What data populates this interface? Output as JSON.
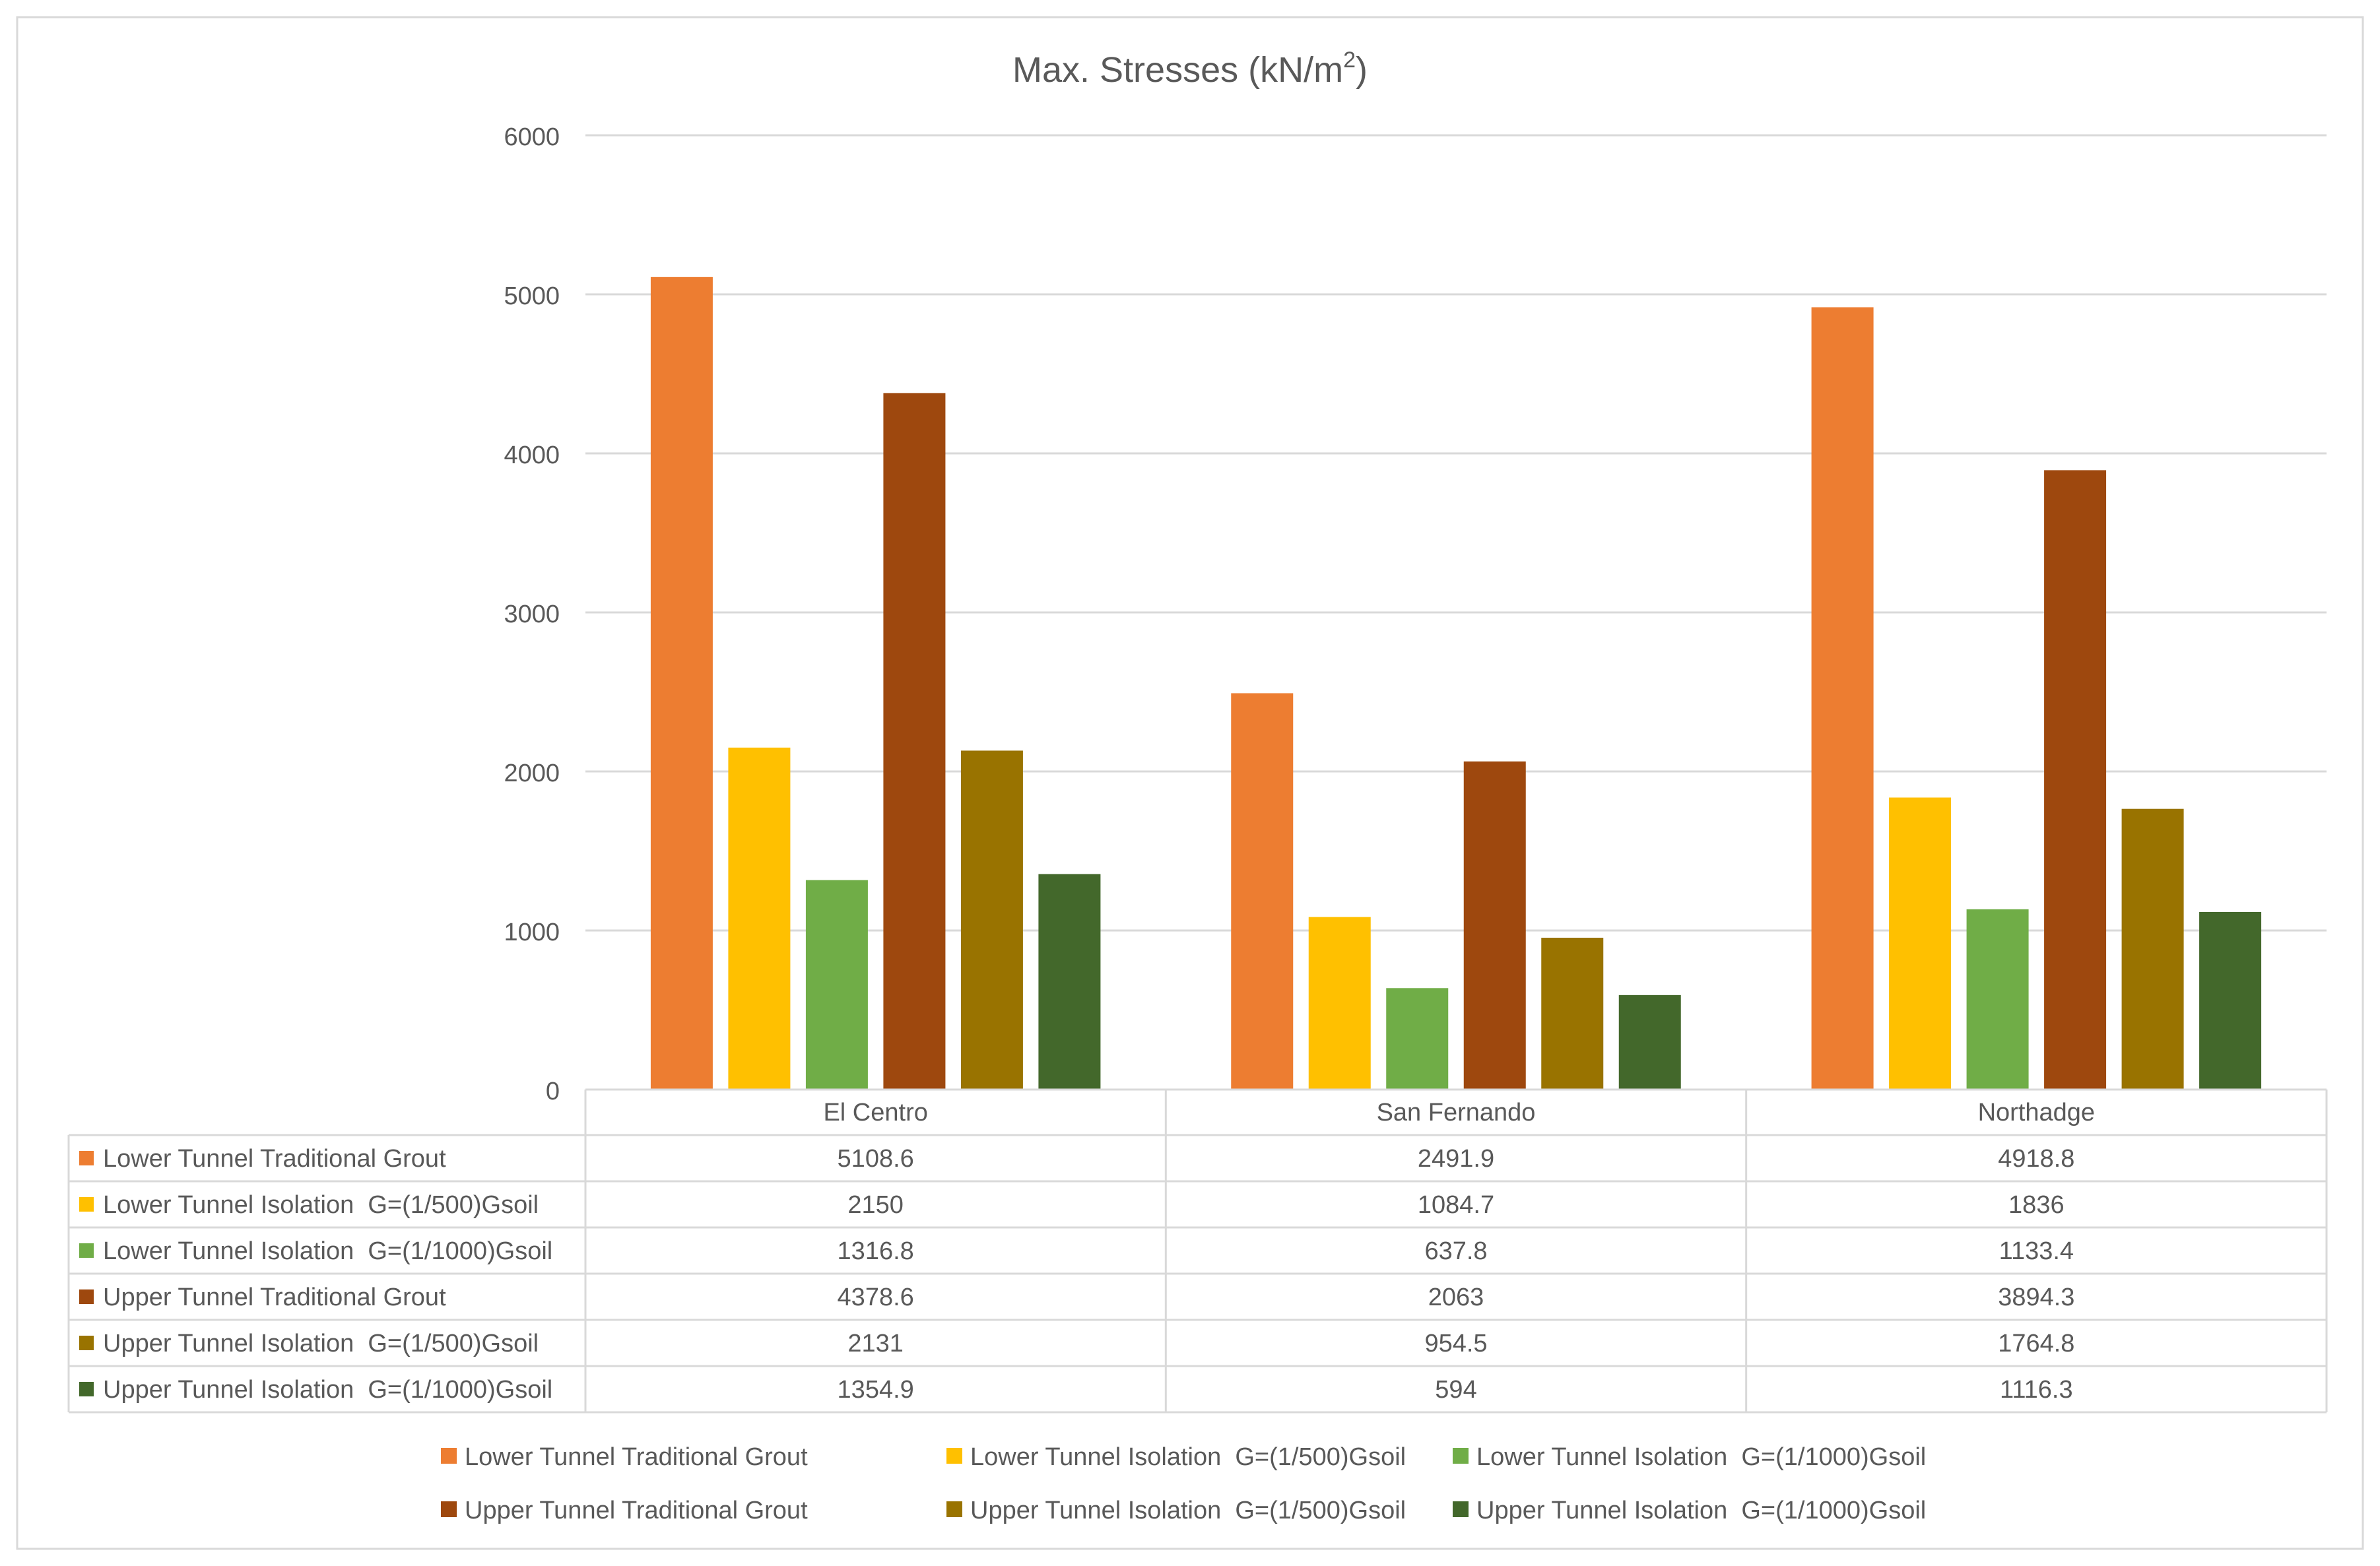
{
  "chart_data": {
    "type": "bar",
    "title": "Max. Stresses (kN/m",
    "title_sup": "2",
    "title_end": ")",
    "categories": [
      "El Centro",
      "San Fernando",
      "Northadge"
    ],
    "ylim": [
      0,
      6000
    ],
    "yticks": [
      "0",
      "1000",
      "2000",
      "3000",
      "4000",
      "5000",
      "6000"
    ],
    "grid": true,
    "legend_position": "bottom",
    "series": [
      {
        "name": "Lower Tunnel Traditional Grout",
        "color": "#ED7D31",
        "values": [
          5108.6,
          2491.9,
          4918.8
        ],
        "labels": [
          "5108.6",
          "2491.9",
          "4918.8"
        ]
      },
      {
        "name": "Lower Tunnel Isolation  G=(1/500)Gsoil",
        "color": "#FFC000",
        "values": [
          2150,
          1084.7,
          1836
        ],
        "labels": [
          "2150",
          "1084.7",
          "1836"
        ]
      },
      {
        "name": "Lower Tunnel Isolation  G=(1/1000)Gsoil",
        "color": "#70AD47",
        "values": [
          1316.8,
          637.8,
          1133.4
        ],
        "labels": [
          "1316.8",
          "637.8",
          "1133.4"
        ]
      },
      {
        "name": "Upper Tunnel Traditional Grout",
        "color": "#9E480E",
        "values": [
          4378.6,
          2063,
          3894.3
        ],
        "labels": [
          "4378.6",
          "2063",
          "3894.3"
        ]
      },
      {
        "name": "Upper Tunnel Isolation  G=(1/500)Gsoil",
        "color": "#997300",
        "values": [
          2131,
          954.5,
          1764.8
        ],
        "labels": [
          "2131",
          "954.5",
          "1764.8"
        ]
      },
      {
        "name": "Upper Tunnel Isolation  G=(1/1000)Gsoil",
        "color": "#43682B",
        "values": [
          1354.9,
          594,
          1116.3
        ],
        "labels": [
          "1354.9",
          "594",
          "1116.3"
        ]
      }
    ]
  }
}
